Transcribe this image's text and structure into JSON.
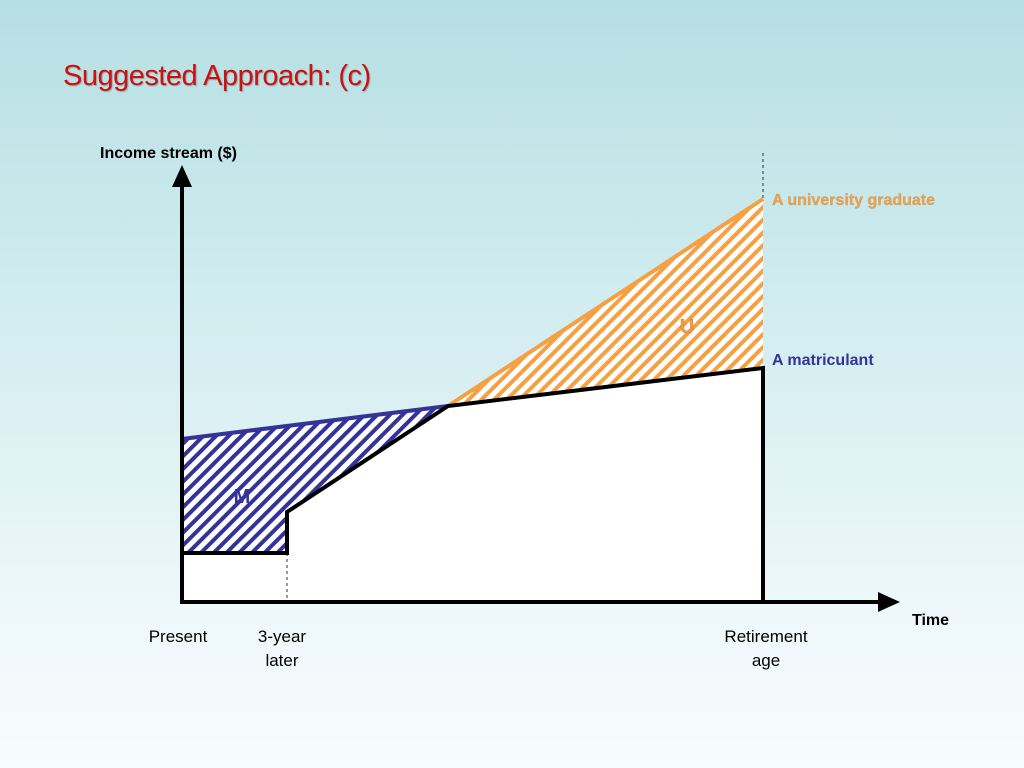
{
  "slide": {
    "title": "Suggested Approach: (c)"
  },
  "diagram": {
    "y_axis_label": "Income stream ($)",
    "x_axis_label": "Time",
    "x_ticks": [
      {
        "line1": "Present",
        "line2": ""
      },
      {
        "line1": "3-year",
        "line2": "later"
      },
      {
        "line1": "Retirement",
        "line2": "age"
      }
    ],
    "series_labels": {
      "graduate": "A university graduate",
      "matriculant": "A matriculant"
    },
    "region_labels": {
      "matriculant_area": "M",
      "graduate_area": "U"
    },
    "colors": {
      "title": "#cc1111",
      "graduate": "#f4a043",
      "matriculant": "#333399",
      "axis": "#000000"
    }
  }
}
